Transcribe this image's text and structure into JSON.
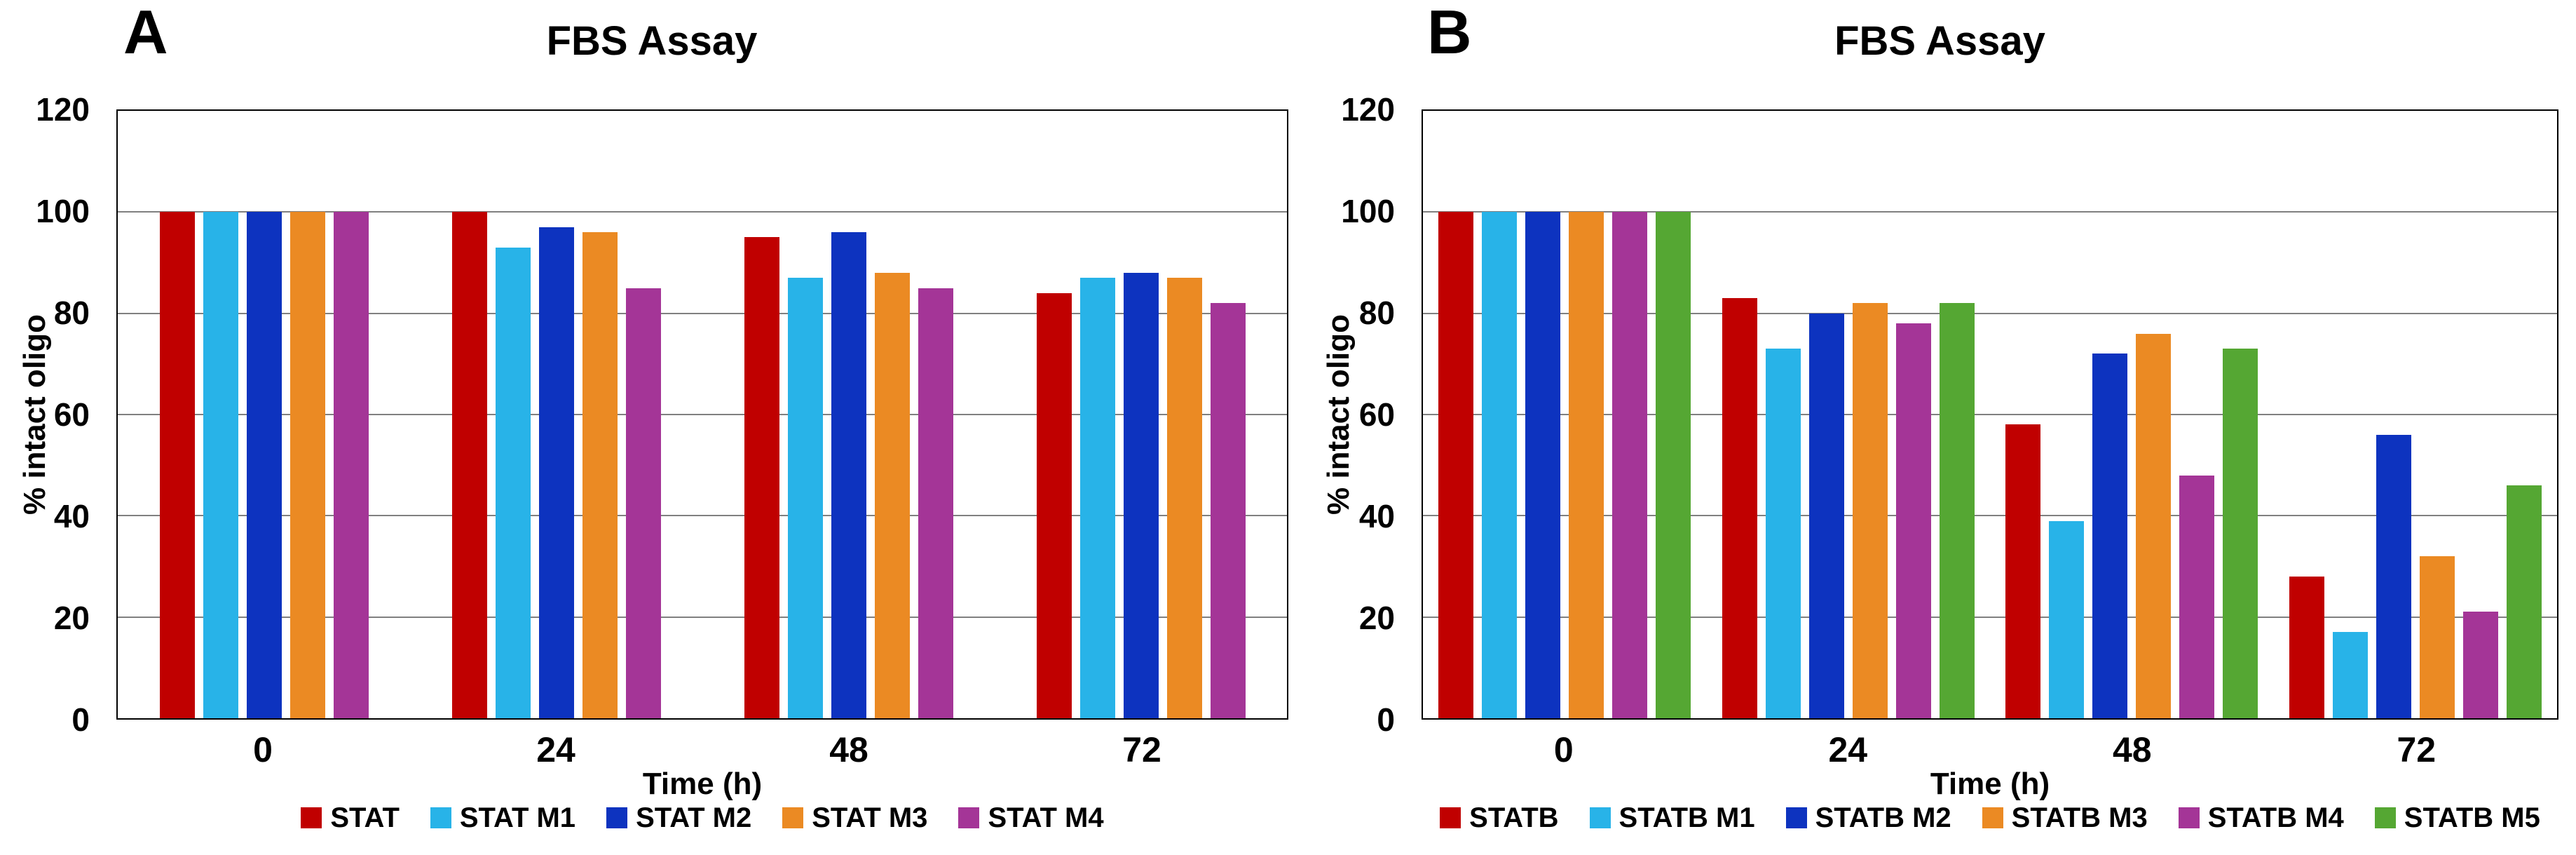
{
  "figure": {
    "background": "#FFFFFF",
    "text_color": "#000000"
  },
  "chart_data": [
    {
      "type": "bar",
      "panel_label": "A",
      "title": "FBS Assay",
      "xlabel": "Time (h)",
      "ylabel": "% intact oligo",
      "ylim": [
        0,
        120
      ],
      "ytick_step": 20,
      "grid": true,
      "gridline_color": "#808080",
      "border_color": "#000000",
      "legend_position": "bottom",
      "categories": [
        "0",
        "24",
        "48",
        "72"
      ],
      "series": [
        {
          "name": "STAT",
          "color": "#C00000",
          "values": [
            100,
            100,
            95,
            84
          ]
        },
        {
          "name": "STAT M1",
          "color": "#28B3E8",
          "values": [
            100,
            93,
            87,
            87
          ]
        },
        {
          "name": "STAT M2",
          "color": "#0D33BF",
          "values": [
            100,
            97,
            96,
            88
          ]
        },
        {
          "name": "STAT M3",
          "color": "#EB8A23",
          "values": [
            100,
            96,
            88,
            87
          ]
        },
        {
          "name": "STAT M4",
          "color": "#A43597",
          "values": [
            100,
            85,
            85,
            82
          ]
        }
      ]
    },
    {
      "type": "bar",
      "panel_label": "B",
      "title": "FBS Assay",
      "xlabel": "Time (h)",
      "ylabel": "% intact oligo",
      "ylim": [
        0,
        120
      ],
      "ytick_step": 20,
      "grid": true,
      "gridline_color": "#808080",
      "border_color": "#000000",
      "legend_position": "bottom",
      "categories": [
        "0",
        "24",
        "48",
        "72"
      ],
      "series": [
        {
          "name": "STATB",
          "color": "#C00000",
          "values": [
            100,
            83,
            58,
            28
          ]
        },
        {
          "name": "STATB M1",
          "color": "#28B3E8",
          "values": [
            100,
            73,
            39,
            17
          ]
        },
        {
          "name": "STATB M2",
          "color": "#0D33BF",
          "values": [
            100,
            80,
            72,
            56
          ]
        },
        {
          "name": "STATB M3",
          "color": "#EB8A23",
          "values": [
            100,
            82,
            76,
            32
          ]
        },
        {
          "name": "STATB M4",
          "color": "#A43597",
          "values": [
            100,
            78,
            48,
            21
          ]
        },
        {
          "name": "STATB M5",
          "color": "#55A733",
          "values": [
            100,
            82,
            73,
            46
          ]
        }
      ]
    }
  ]
}
